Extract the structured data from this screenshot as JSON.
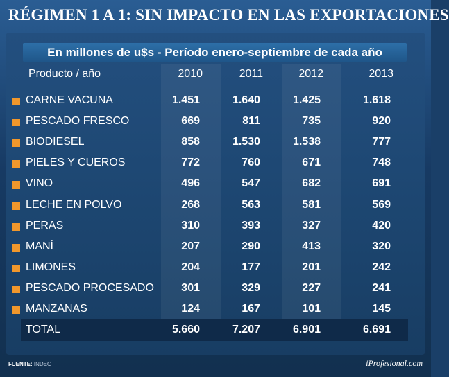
{
  "title": "RÉGIMEN 1 A 1: SIN IMPACTO EN LAS EXPORTACIONES",
  "subtitle": "En millones de u$s - Período enero-septiembre de cada año",
  "source_label": "FUENTE:",
  "source_value": "INDEC",
  "brand": "iProfesional.com",
  "colors": {
    "accent": "#f0972c",
    "background": "#1a3f68",
    "header_bar": "#2d6fa8",
    "total_bar": "#0f2a49"
  },
  "chart_data": {
    "type": "table",
    "title": "RÉGIMEN 1 A 1: SIN IMPACTO EN LAS EXPORTACIONES",
    "subtitle": "En millones de u$s - Período enero-septiembre de cada año",
    "row_header": "Producto / año",
    "columns": [
      "2010",
      "2011",
      "2012",
      "2013"
    ],
    "rows": [
      {
        "label": "CARNE VACUNA",
        "values": [
          "1.451",
          "1.640",
          "1.425",
          "1.618"
        ]
      },
      {
        "label": "PESCADO FRESCO",
        "values": [
          "669",
          "811",
          "735",
          "920"
        ]
      },
      {
        "label": "BIODIESEL",
        "values": [
          "858",
          "1.530",
          "1.538",
          "777"
        ]
      },
      {
        "label": "PIELES Y CUEROS",
        "values": [
          "772",
          "760",
          "671",
          "748"
        ]
      },
      {
        "label": "VINO",
        "values": [
          "496",
          "547",
          "682",
          "691"
        ]
      },
      {
        "label": "LECHE EN POLVO",
        "values": [
          "268",
          "563",
          "581",
          "569"
        ]
      },
      {
        "label": "PERAS",
        "values": [
          "310",
          "393",
          "327",
          "420"
        ]
      },
      {
        "label": "MANÍ",
        "values": [
          "207",
          "290",
          "413",
          "320"
        ]
      },
      {
        "label": "LIMONES",
        "values": [
          "204",
          "177",
          "201",
          "242"
        ]
      },
      {
        "label": "PESCADO PROCESADO",
        "values": [
          "301",
          "329",
          "227",
          "241"
        ]
      },
      {
        "label": "MANZANAS",
        "values": [
          "124",
          "167",
          "101",
          "145"
        ]
      }
    ],
    "total": {
      "label": "TOTAL",
      "values": [
        "5.660",
        "7.207",
        "6.901",
        "6.691"
      ]
    }
  }
}
